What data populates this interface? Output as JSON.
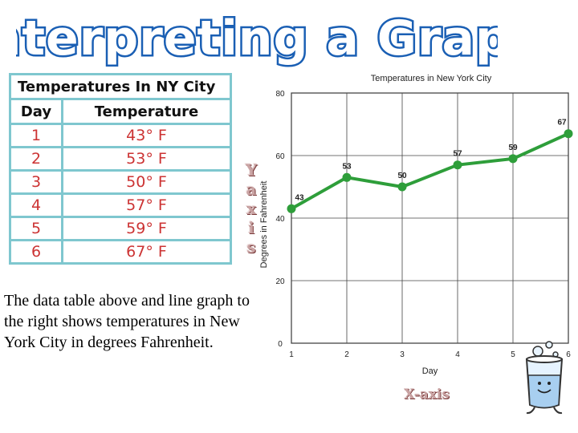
{
  "slide": {
    "title": "Interpreting a Graph",
    "description": "The data table above and line graph to the right shows temperatures in New York City in degrees Fahrenheit.",
    "y_axis_callout": [
      "Y",
      "a",
      "x",
      "i",
      "s"
    ],
    "x_axis_callout": "X-axis",
    "title_color": "#1a5fb4"
  },
  "table": {
    "caption": "Temperatures In NY City",
    "headers": [
      "Day",
      "Temperature"
    ],
    "rows": [
      [
        "1",
        "43° F"
      ],
      [
        "2",
        "53° F"
      ],
      [
        "3",
        "50° F"
      ],
      [
        "4",
        "57° F"
      ],
      [
        "5",
        "59° F"
      ],
      [
        "6",
        "67° F"
      ]
    ],
    "border_color": "#7fc7cf",
    "value_color": "#cc3333"
  },
  "chart_data": {
    "type": "line",
    "title": "Temperatures in New York City",
    "xlabel": "Day",
    "ylabel": "Degrees in Fahrenheit",
    "x": [
      1,
      2,
      3,
      4,
      5,
      6
    ],
    "values": [
      43,
      53,
      50,
      57,
      59,
      67
    ],
    "data_labels": [
      "43",
      "53",
      "50",
      "57",
      "59",
      "67"
    ],
    "x_ticks": [
      "1",
      "2",
      "3",
      "4",
      "5",
      "6"
    ],
    "y_ticks": [
      "0",
      "20",
      "40",
      "60",
      "80"
    ],
    "xlim": [
      1,
      6
    ],
    "ylim": [
      0,
      80
    ],
    "grid": true,
    "line_color": "#2e9e3a"
  },
  "icons": {
    "decoration": "beaker-character-icon"
  }
}
